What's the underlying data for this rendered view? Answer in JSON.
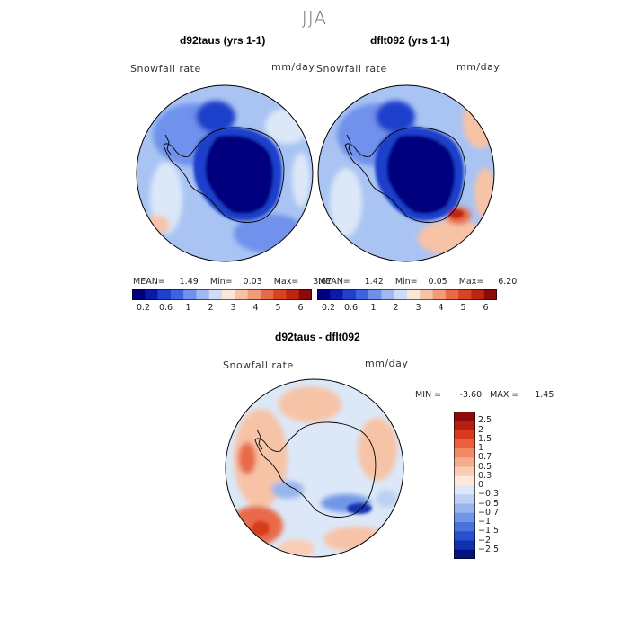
{
  "season_title": "JJA",
  "panels": [
    {
      "title": "d92taus (yrs 1-1)",
      "variable_label": "Snowfall rate",
      "units_label": "mm/day",
      "stats": {
        "mean_label": "MEAN=",
        "mean": "1.49",
        "min_label": "Min=",
        "min": "0.03",
        "max_label": "Max=",
        "max": "3.67"
      }
    },
    {
      "title": "dflt092 (yrs 1-1)",
      "variable_label": "Snowfall rate",
      "units_label": "mm/day",
      "stats": {
        "mean_label": "MEAN=",
        "mean": "1.42",
        "min_label": "Min=",
        "min": "0.05",
        "max_label": "Max=",
        "max": "6.20"
      }
    }
  ],
  "top_colorbar": {
    "colors": [
      "#00007f",
      "#0a1aa6",
      "#1f3fcc",
      "#3d63e0",
      "#6f91ec",
      "#9fb8f2",
      "#cfdcf7",
      "#fbe6d8",
      "#f7c3a6",
      "#f19b78",
      "#e86a48",
      "#d84324",
      "#bb2511",
      "#8c0a0a"
    ],
    "tick_labels": [
      "0.2",
      "0.6",
      "1",
      "2",
      "3",
      "4",
      "5",
      "6"
    ]
  },
  "diff_panel": {
    "title": "d92taus - dflt092",
    "variable_label": "Snowfall rate",
    "units_label": "mm/day",
    "stats": {
      "min_label": "MIN =",
      "min": "-3.60",
      "max_label": "MAX =",
      "max": "1.45"
    }
  },
  "diff_colorbar": {
    "colors": [
      "#8c0a0a",
      "#b71e0f",
      "#d63a1f",
      "#e9603a",
      "#f18963",
      "#f6ad8c",
      "#f9cdb4",
      "#fde8da",
      "#dce8f8",
      "#bcd1f3",
      "#98b5ee",
      "#7196e7",
      "#4a73dd",
      "#2a4fcc",
      "#1330b0",
      "#00137f"
    ],
    "tick_labels": [
      "2.5",
      "2",
      "1.5",
      "1",
      "0.7",
      "0.5",
      "0.3",
      "0",
      "−0.3",
      "−0.5",
      "−0.7",
      "−1",
      "−1.5",
      "−2",
      "−2.5"
    ]
  },
  "map_fill_colors": {
    "base_blue": "#a9c4f3",
    "mid_blue": "#6f91ec",
    "deep_blue": "#1f3fcc",
    "darkest_blue": "#00007f",
    "light": "#dce8f8",
    "peach": "#f7c3a6",
    "orange": "#e86a48",
    "red": "#bb2511"
  }
}
